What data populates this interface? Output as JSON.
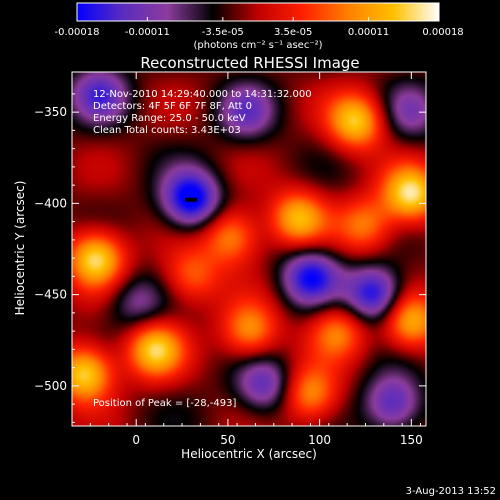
{
  "colorbar": {
    "ticks": [
      "-0.00018",
      "-0.00011",
      "-3.5e-05",
      "3.5e-05",
      "0.00011",
      "0.00018"
    ],
    "tick_values": [
      -0.00018,
      -0.00011,
      -3.5e-05,
      3.5e-05,
      0.00011,
      0.00018
    ],
    "range": [
      -0.00018,
      0.00018
    ],
    "units": "(photons cm⁻² s⁻¹ asec⁻²)",
    "colors": [
      "#0000ff",
      "#5a2cc0",
      "#8c3c9c",
      "#000000",
      "#c00000",
      "#ff2000",
      "#ff8000",
      "#ffc000",
      "#ffffff"
    ]
  },
  "chart_data": {
    "type": "heatmap",
    "title": "Reconstructed RHESSI Image",
    "xlabel": "Heliocentric X (arcsec)",
    "ylabel": "Heliocentric Y (arcsec)",
    "xlim": [
      -35,
      158
    ],
    "ylim": [
      -522,
      -328
    ],
    "xticks": [
      0,
      50,
      100,
      150
    ],
    "yticks": [
      -350,
      -400,
      -450,
      -500
    ],
    "info_lines": [
      "12-Nov-2010 14:29:40.000 to 14:31:32.000",
      "Detectors: 4F 5F 6F 7F 8F, Att 0",
      "Energy Range: 25.0 - 50.0 keV",
      "Clean     Total counts: 3.43E+03"
    ],
    "peak_label": "Position of Peak = [-28,-493]",
    "features": [
      {
        "x": 120,
        "y": -355,
        "v": 0.9
      },
      {
        "x": 150,
        "y": -395,
        "v": 1.0
      },
      {
        "x": 88,
        "y": -408,
        "v": 0.8
      },
      {
        "x": 52,
        "y": -418,
        "v": 0.7
      },
      {
        "x": 125,
        "y": -412,
        "v": 0.6
      },
      {
        "x": -22,
        "y": -430,
        "v": 1.0
      },
      {
        "x": 30,
        "y": -440,
        "v": 0.55
      },
      {
        "x": 10,
        "y": -480,
        "v": 0.9
      },
      {
        "x": -28,
        "y": -493,
        "v": 1.0
      },
      {
        "x": 62,
        "y": -470,
        "v": 0.7
      },
      {
        "x": 110,
        "y": -470,
        "v": 0.6
      },
      {
        "x": 150,
        "y": -465,
        "v": 0.8
      },
      {
        "x": 95,
        "y": -505,
        "v": 0.7
      },
      {
        "x": 30,
        "y": -398,
        "v": -1.0
      },
      {
        "x": 95,
        "y": -440,
        "v": -0.8
      },
      {
        "x": 130,
        "y": -450,
        "v": -0.9
      },
      {
        "x": -20,
        "y": -340,
        "v": -0.6
      },
      {
        "x": 60,
        "y": -350,
        "v": -0.5
      },
      {
        "x": 70,
        "y": -500,
        "v": -0.6
      },
      {
        "x": 140,
        "y": -510,
        "v": -0.7
      },
      {
        "x": 0,
        "y": -455,
        "v": -0.4
      },
      {
        "x": 150,
        "y": -350,
        "v": -0.4
      }
    ]
  },
  "footer": {
    "timestamp": "3-Aug-2013 13:52"
  }
}
